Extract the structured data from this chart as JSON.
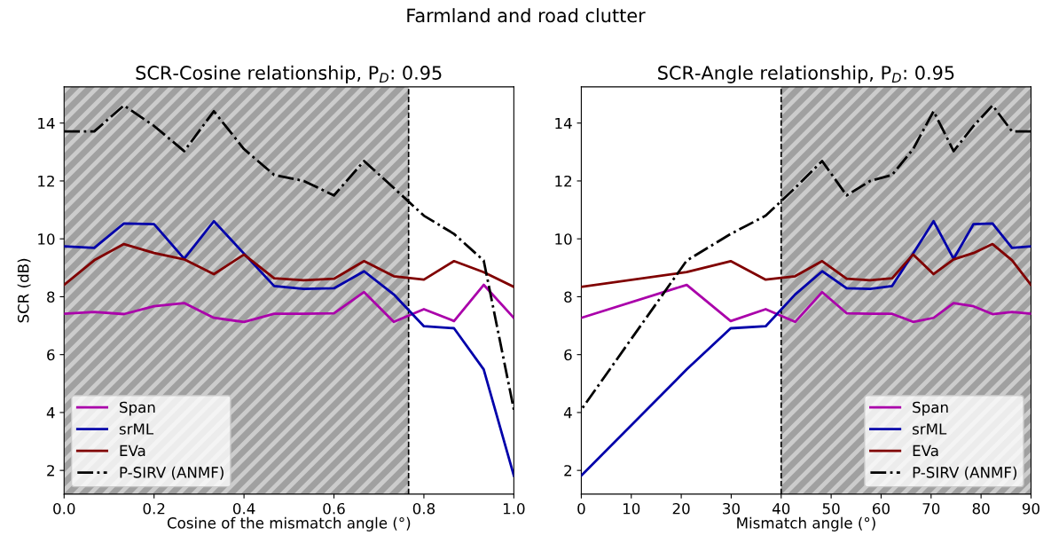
{
  "chart_data": [
    {
      "type": "line",
      "title": "SCR-Cosine relationship, P$_{D}$: 0.95",
      "annotations": [
        "Farmland and road clutter"
      ],
      "xlabel": "Cosine of the mismatch angle (°)",
      "ylabel": "SCR (dB)",
      "x": [
        0,
        0.067,
        0.133,
        0.2,
        0.267,
        0.333,
        0.4,
        0.467,
        0.533,
        0.6,
        0.667,
        0.733,
        0.8,
        0.867,
        0.933,
        1
      ],
      "series": [
        {
          "name": "Span",
          "color": "#aa00aa",
          "line_style": "solid",
          "values": [
            7.41,
            7.47,
            7.4,
            7.67,
            7.78,
            7.27,
            7.13,
            7.41,
            7.41,
            7.43,
            8.16,
            7.13,
            7.57,
            7.16,
            8.41,
            7.27
          ]
        },
        {
          "name": "srML",
          "color": "#0000aa",
          "line_style": "solid",
          "values": [
            9.74,
            9.69,
            10.53,
            10.51,
            9.31,
            10.61,
            9.49,
            8.37,
            8.27,
            8.29,
            8.88,
            8.08,
            6.98,
            6.91,
            5.49,
            1.82
          ]
        },
        {
          "name": "EVa",
          "color": "#800000",
          "line_style": "solid",
          "values": [
            8.41,
            9.26,
            9.82,
            9.51,
            9.29,
            8.78,
            9.46,
            8.64,
            8.57,
            8.62,
            9.23,
            8.71,
            8.59,
            9.23,
            8.85,
            8.34
          ]
        },
        {
          "name": "P-SIRV (ANMF)",
          "color": "#000000",
          "line_style": "dashdot",
          "values": [
            13.71,
            13.71,
            14.61,
            13.9,
            13.03,
            14.41,
            13.1,
            12.21,
            12.0,
            11.5,
            12.69,
            11.76,
            10.8,
            10.17,
            9.25,
            4.1
          ]
        }
      ],
      "xlim": [
        0,
        1
      ],
      "xticks": [
        {
          "value": 0,
          "label": "0.0"
        },
        {
          "value": 0.2,
          "label": "0.2"
        },
        {
          "value": 0.4,
          "label": "0.4"
        },
        {
          "value": 0.6,
          "label": "0.6"
        },
        {
          "value": 0.8,
          "label": "0.8"
        },
        {
          "value": 1,
          "label": "1.0"
        }
      ],
      "ylim": [
        1.18,
        15.25
      ],
      "yticks": [
        2,
        4,
        6,
        8,
        10,
        12,
        14
      ],
      "bands": [
        {
          "axis": "x",
          "from": 0,
          "to": 0.766,
          "color": "#cccccc"
        }
      ],
      "ref_lines": [
        {
          "axis": "x",
          "value": 0.766,
          "color": "#000000",
          "line_style": "dashed"
        }
      ],
      "legend": "bottom left",
      "grid": false,
      "marker": "none"
    },
    {
      "type": "line",
      "title": "SCR-Angle relationship, P$_{D}$: 0.95",
      "xlabel": "Mismatch angle (°)",
      "x": [
        90,
        86.2,
        82.3,
        78.5,
        74.5,
        70.5,
        66.4,
        62.2,
        57.8,
        53.1,
        48.2,
        42.8,
        36.9,
        29.9,
        21.1,
        0
      ],
      "series": [
        {
          "name": "Span",
          "color": "#aa00aa",
          "line_style": "solid",
          "values": [
            7.41,
            7.47,
            7.4,
            7.67,
            7.78,
            7.27,
            7.13,
            7.41,
            7.41,
            7.43,
            8.16,
            7.13,
            7.57,
            7.16,
            8.41,
            7.27
          ]
        },
        {
          "name": "srML",
          "color": "#0000aa",
          "line_style": "solid",
          "values": [
            9.74,
            9.69,
            10.53,
            10.51,
            9.31,
            10.61,
            9.49,
            8.37,
            8.27,
            8.29,
            8.88,
            8.08,
            6.98,
            6.91,
            5.49,
            1.82
          ]
        },
        {
          "name": "EVa",
          "color": "#800000",
          "line_style": "solid",
          "values": [
            8.41,
            9.26,
            9.82,
            9.51,
            9.29,
            8.78,
            9.46,
            8.64,
            8.57,
            8.62,
            9.23,
            8.71,
            8.59,
            9.23,
            8.85,
            8.34
          ]
        },
        {
          "name": "P-SIRV (ANMF)",
          "color": "#000000",
          "line_style": "dashdot",
          "values": [
            13.71,
            13.71,
            14.61,
            13.9,
            13.03,
            14.41,
            13.1,
            12.21,
            12.0,
            11.5,
            12.69,
            11.76,
            10.8,
            10.17,
            9.25,
            4.1
          ]
        }
      ],
      "xlim": [
        0,
        90
      ],
      "xticks": [
        0,
        10,
        20,
        30,
        40,
        50,
        60,
        70,
        80,
        90
      ],
      "ylim": [
        1.18,
        15.25
      ],
      "yticks": [
        2,
        4,
        6,
        8,
        10,
        12,
        14
      ],
      "bands": [
        {
          "axis": "x",
          "from": 40,
          "to": 90,
          "color": "#cccccc"
        }
      ],
      "ref_lines": [
        {
          "axis": "x",
          "value": 40,
          "color": "#000000",
          "line_style": "dashed"
        }
      ],
      "legend": "bottom right",
      "grid": false,
      "marker": "none"
    }
  ]
}
